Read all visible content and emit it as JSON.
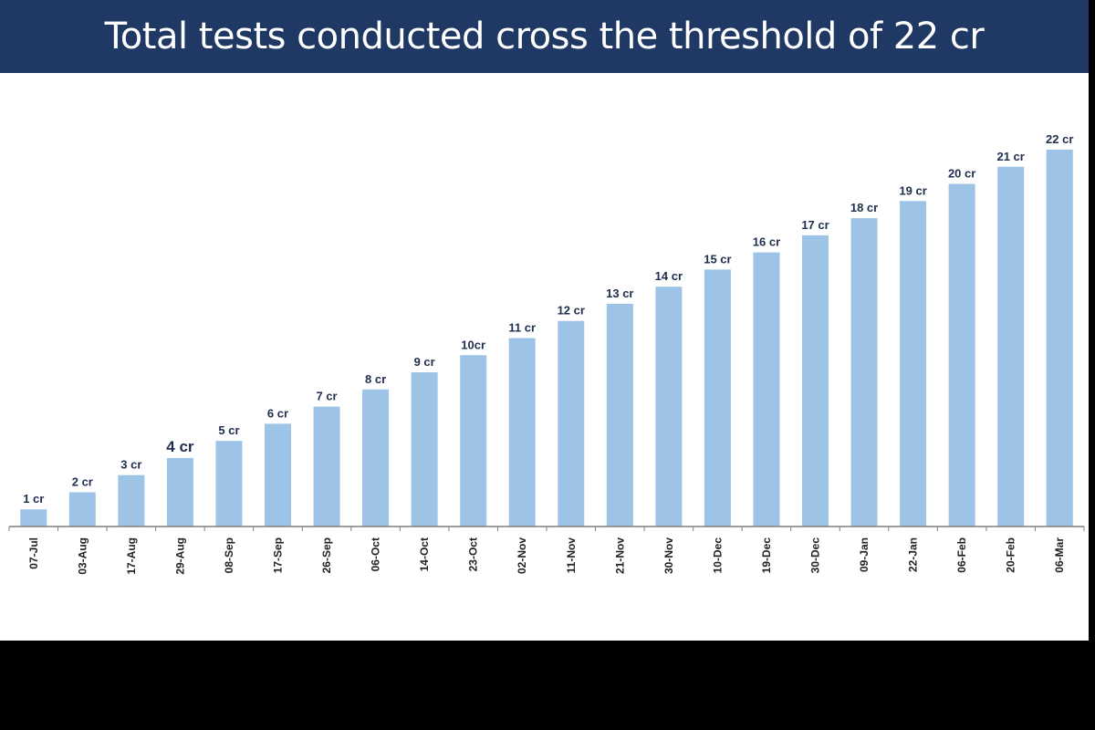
{
  "title": "Total tests conducted cross the threshold of 22 cr",
  "colors": {
    "title_bar": "#1f3864",
    "bar": "#9dc3e6",
    "data_label": "#1f2d4e",
    "background": "#ffffff"
  },
  "chart_data": {
    "type": "bar",
    "title": "Total tests conducted cross the threshold of 22 cr",
    "xlabel": "",
    "ylabel": "",
    "categories": [
      "07-Jul",
      "03-Aug",
      "17-Aug",
      "29-Aug",
      "08-Sep",
      "17-Sep",
      "26-Sep",
      "06-Oct",
      "14-Oct",
      "23-Oct",
      "02-Nov",
      "11-Nov",
      "21-Nov",
      "30-Nov",
      "10-Dec",
      "19-Dec",
      "30-Dec",
      "09-Jan",
      "22-Jan",
      "06-Feb",
      "20-Feb",
      "06-Mar"
    ],
    "values": [
      1,
      2,
      3,
      4,
      5,
      6,
      7,
      8,
      9,
      10,
      11,
      12,
      13,
      14,
      15,
      16,
      17,
      18,
      19,
      20,
      21,
      22
    ],
    "data_labels": [
      "1 cr",
      "2 cr",
      "3 cr",
      "4 cr",
      "5 cr",
      "6 cr",
      "7 cr",
      "8 cr",
      "9 cr",
      "10cr",
      "11 cr",
      "12 cr",
      "13 cr",
      "14 cr",
      "15 cr",
      "16 cr",
      "17 cr",
      "18 cr",
      "19 cr",
      "20 cr",
      "21 cr",
      "22 cr"
    ],
    "emphasized_label_index": 3,
    "ylim": [
      0,
      22
    ],
    "grid": false,
    "legend": "none",
    "y_axis_visible": false
  }
}
